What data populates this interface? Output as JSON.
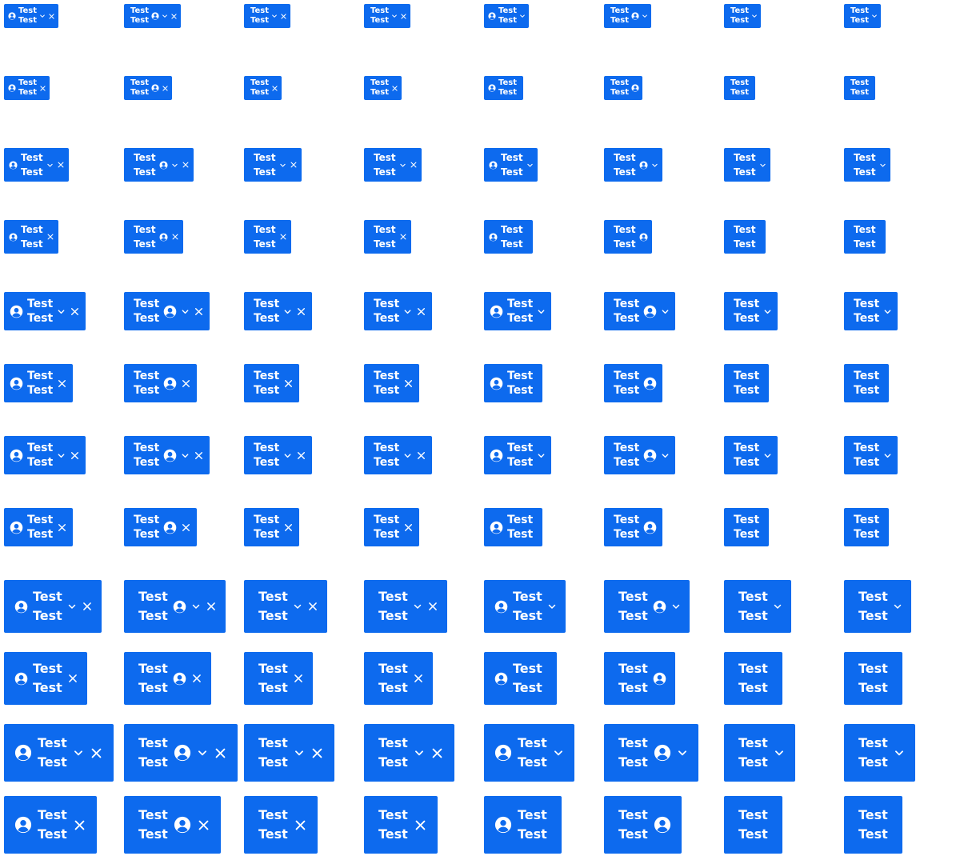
{
  "chip": {
    "line1": "Test",
    "line2": "Test",
    "color": "#0d6aee",
    "text_color": "#ffffff"
  },
  "icons": {
    "avatar": "user-circle-icon",
    "dropdown": "chevron-down-icon",
    "remove": "close-icon"
  },
  "variants": [
    {
      "avatar_left": true,
      "avatar_right": false,
      "dropdown": true,
      "close": true
    },
    {
      "avatar_left": false,
      "avatar_right": true,
      "dropdown": true,
      "close": true
    },
    {
      "avatar_left": false,
      "avatar_right": false,
      "dropdown": true,
      "close": true
    },
    {
      "avatar_left": false,
      "avatar_right": false,
      "dropdown": true,
      "close": true
    },
    {
      "avatar_left": true,
      "avatar_right": false,
      "dropdown": true,
      "close": false
    },
    {
      "avatar_left": false,
      "avatar_right": true,
      "dropdown": true,
      "close": false
    },
    {
      "avatar_left": false,
      "avatar_right": false,
      "dropdown": true,
      "close": false
    },
    {
      "avatar_left": false,
      "avatar_right": false,
      "dropdown": true,
      "close": false
    }
  ],
  "rows": [
    {
      "size": "xs",
      "has_dropdown": true
    },
    {
      "size": "xs",
      "has_dropdown": false
    },
    {
      "size": "sm",
      "has_dropdown": true
    },
    {
      "size": "sm",
      "has_dropdown": false
    },
    {
      "size": "md",
      "has_dropdown": true
    },
    {
      "size": "md",
      "has_dropdown": false
    },
    {
      "size": "md",
      "has_dropdown": true
    },
    {
      "size": "md",
      "has_dropdown": false
    },
    {
      "size": "lg",
      "has_dropdown": true
    },
    {
      "size": "lg",
      "has_dropdown": false
    },
    {
      "size": "xl",
      "has_dropdown": true
    },
    {
      "size": "xl",
      "has_dropdown": false
    }
  ]
}
